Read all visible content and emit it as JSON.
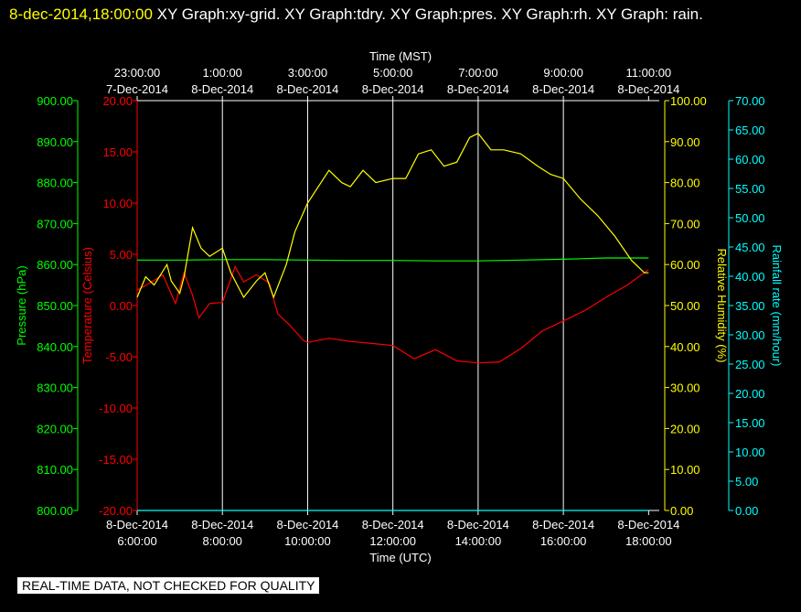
{
  "header": {
    "timestamp": "8-dec-2014,18:00:00",
    "titles": "XY Graph:xy-grid.  XY Graph:tdry.  XY Graph:pres.  XY Graph:rh.  XY Graph: rain."
  },
  "banner": "REAL-TIME DATA, NOT CHECKED FOR QUALITY",
  "colors": {
    "pressure": "#00ff00",
    "temperature": "#ff0000",
    "humidity": "#ffff00",
    "rain": "#00ffff",
    "grid": "#ffffff",
    "background": "#000000"
  },
  "chart_data": {
    "type": "line",
    "grid": true,
    "top_axis": {
      "title": "Time (MST)",
      "ticks": [
        [
          "23:00:00",
          "7-Dec-2014"
        ],
        [
          "1:00:00",
          "8-Dec-2014"
        ],
        [
          "3:00:00",
          "8-Dec-2014"
        ],
        [
          "5:00:00",
          "8-Dec-2014"
        ],
        [
          "7:00:00",
          "8-Dec-2014"
        ],
        [
          "9:00:00",
          "8-Dec-2014"
        ],
        [
          "11:00:00",
          "8-Dec-2014"
        ]
      ]
    },
    "bottom_axis": {
      "title": "Time (UTC)",
      "range_hours": [
        6,
        18.25
      ],
      "ticks": [
        [
          "8-Dec-2014",
          "6:00:00"
        ],
        [
          "8-Dec-2014",
          "8:00:00"
        ],
        [
          "8-Dec-2014",
          "10:00:00"
        ],
        [
          "8-Dec-2014",
          "12:00:00"
        ],
        [
          "8-Dec-2014",
          "14:00:00"
        ],
        [
          "8-Dec-2014",
          "16:00:00"
        ],
        [
          "8-Dec-2014",
          "18:00:00"
        ]
      ]
    },
    "y_axes": {
      "pressure": {
        "title": "Pressure (hPa)",
        "range": [
          800,
          900
        ],
        "ticks": [
          "900.00",
          "890.00",
          "880.00",
          "870.00",
          "860.00",
          "850.00",
          "840.00",
          "830.00",
          "820.00",
          "810.00",
          "800.00"
        ]
      },
      "temperature": {
        "title": "Temperature (Celsius)",
        "range": [
          -20,
          20
        ],
        "ticks": [
          "20.00",
          "15.00",
          "10.00",
          "5.00",
          "0.00",
          "-5.00",
          "-10.00",
          "-15.00",
          "-20.00"
        ]
      },
      "humidity": {
        "title": "Relative Humidity (%)",
        "range": [
          0,
          100
        ],
        "ticks": [
          "100.00",
          "90.00",
          "80.00",
          "70.00",
          "60.00",
          "50.00",
          "40.00",
          "30.00",
          "20.00",
          "10.00",
          "0.00"
        ]
      },
      "rain": {
        "title": "Rainfall rate (mm/hour)",
        "range": [
          0,
          70
        ],
        "ticks": [
          "70.00",
          "65.00",
          "60.00",
          "55.00",
          "50.00",
          "45.00",
          "40.00",
          "35.00",
          "30.00",
          "25.00",
          "20.00",
          "15.00",
          "10.00",
          "5.00",
          "0.00"
        ]
      }
    },
    "series": [
      {
        "name": "Pressure",
        "axis": "pressure",
        "x": [
          6.0,
          7.0,
          8.0,
          9.0,
          10.0,
          11.0,
          12.0,
          13.0,
          14.0,
          15.0,
          16.0,
          17.0,
          18.0
        ],
        "y": [
          861.1,
          861.1,
          861.2,
          861.2,
          861.1,
          861.0,
          861.0,
          860.9,
          860.9,
          861.1,
          861.3,
          861.6,
          861.6
        ]
      },
      {
        "name": "Temperature",
        "axis": "temperature",
        "x": [
          6.0,
          6.3,
          6.6,
          6.9,
          7.1,
          7.3,
          7.45,
          7.7,
          8.0,
          8.3,
          8.5,
          8.8,
          9.1,
          9.3,
          9.6,
          9.9,
          10.0,
          10.5,
          11.0,
          11.5,
          12.0,
          12.5,
          13.0,
          13.5,
          14.0,
          14.5,
          15.0,
          15.5,
          16.0,
          16.5,
          17.0,
          17.5,
          18.0
        ],
        "y": [
          1.5,
          2.2,
          3.0,
          0.2,
          3.2,
          1.0,
          -1.2,
          0.2,
          0.3,
          3.8,
          2.3,
          3.0,
          2.2,
          -0.8,
          -2.0,
          -3.4,
          -3.6,
          -3.2,
          -3.5,
          -3.7,
          -3.9,
          -5.2,
          -4.3,
          -5.4,
          -5.6,
          -5.5,
          -4.2,
          -2.5,
          -1.5,
          -0.5,
          0.8,
          2.0,
          3.5
        ]
      },
      {
        "name": "Relative Humidity",
        "axis": "humidity",
        "x": [
          6.0,
          6.2,
          6.4,
          6.7,
          6.8,
          7.0,
          7.1,
          7.3,
          7.5,
          7.7,
          8.0,
          8.2,
          8.5,
          8.8,
          9.0,
          9.2,
          9.5,
          9.7,
          10.0,
          10.5,
          10.8,
          11.0,
          11.3,
          11.6,
          12.0,
          12.3,
          12.6,
          12.9,
          13.2,
          13.5,
          13.8,
          14.0,
          14.3,
          14.6,
          15.0,
          15.4,
          15.7,
          16.0,
          16.4,
          16.8,
          17.2,
          17.6,
          17.9,
          18.0
        ],
        "y": [
          52,
          57,
          55,
          60,
          56,
          53,
          57,
          69,
          64,
          62,
          64,
          58,
          52,
          56,
          58,
          52,
          60,
          68,
          75,
          83,
          80,
          79,
          83,
          80,
          81,
          81,
          87,
          88,
          84,
          85,
          91,
          92,
          88,
          88,
          87,
          84,
          82,
          81,
          76,
          72,
          67,
          61,
          58,
          58
        ]
      },
      {
        "name": "Rainfall rate",
        "axis": "rain",
        "x": [
          6.0,
          18.0
        ],
        "y": [
          0.0,
          0.0
        ]
      }
    ]
  }
}
